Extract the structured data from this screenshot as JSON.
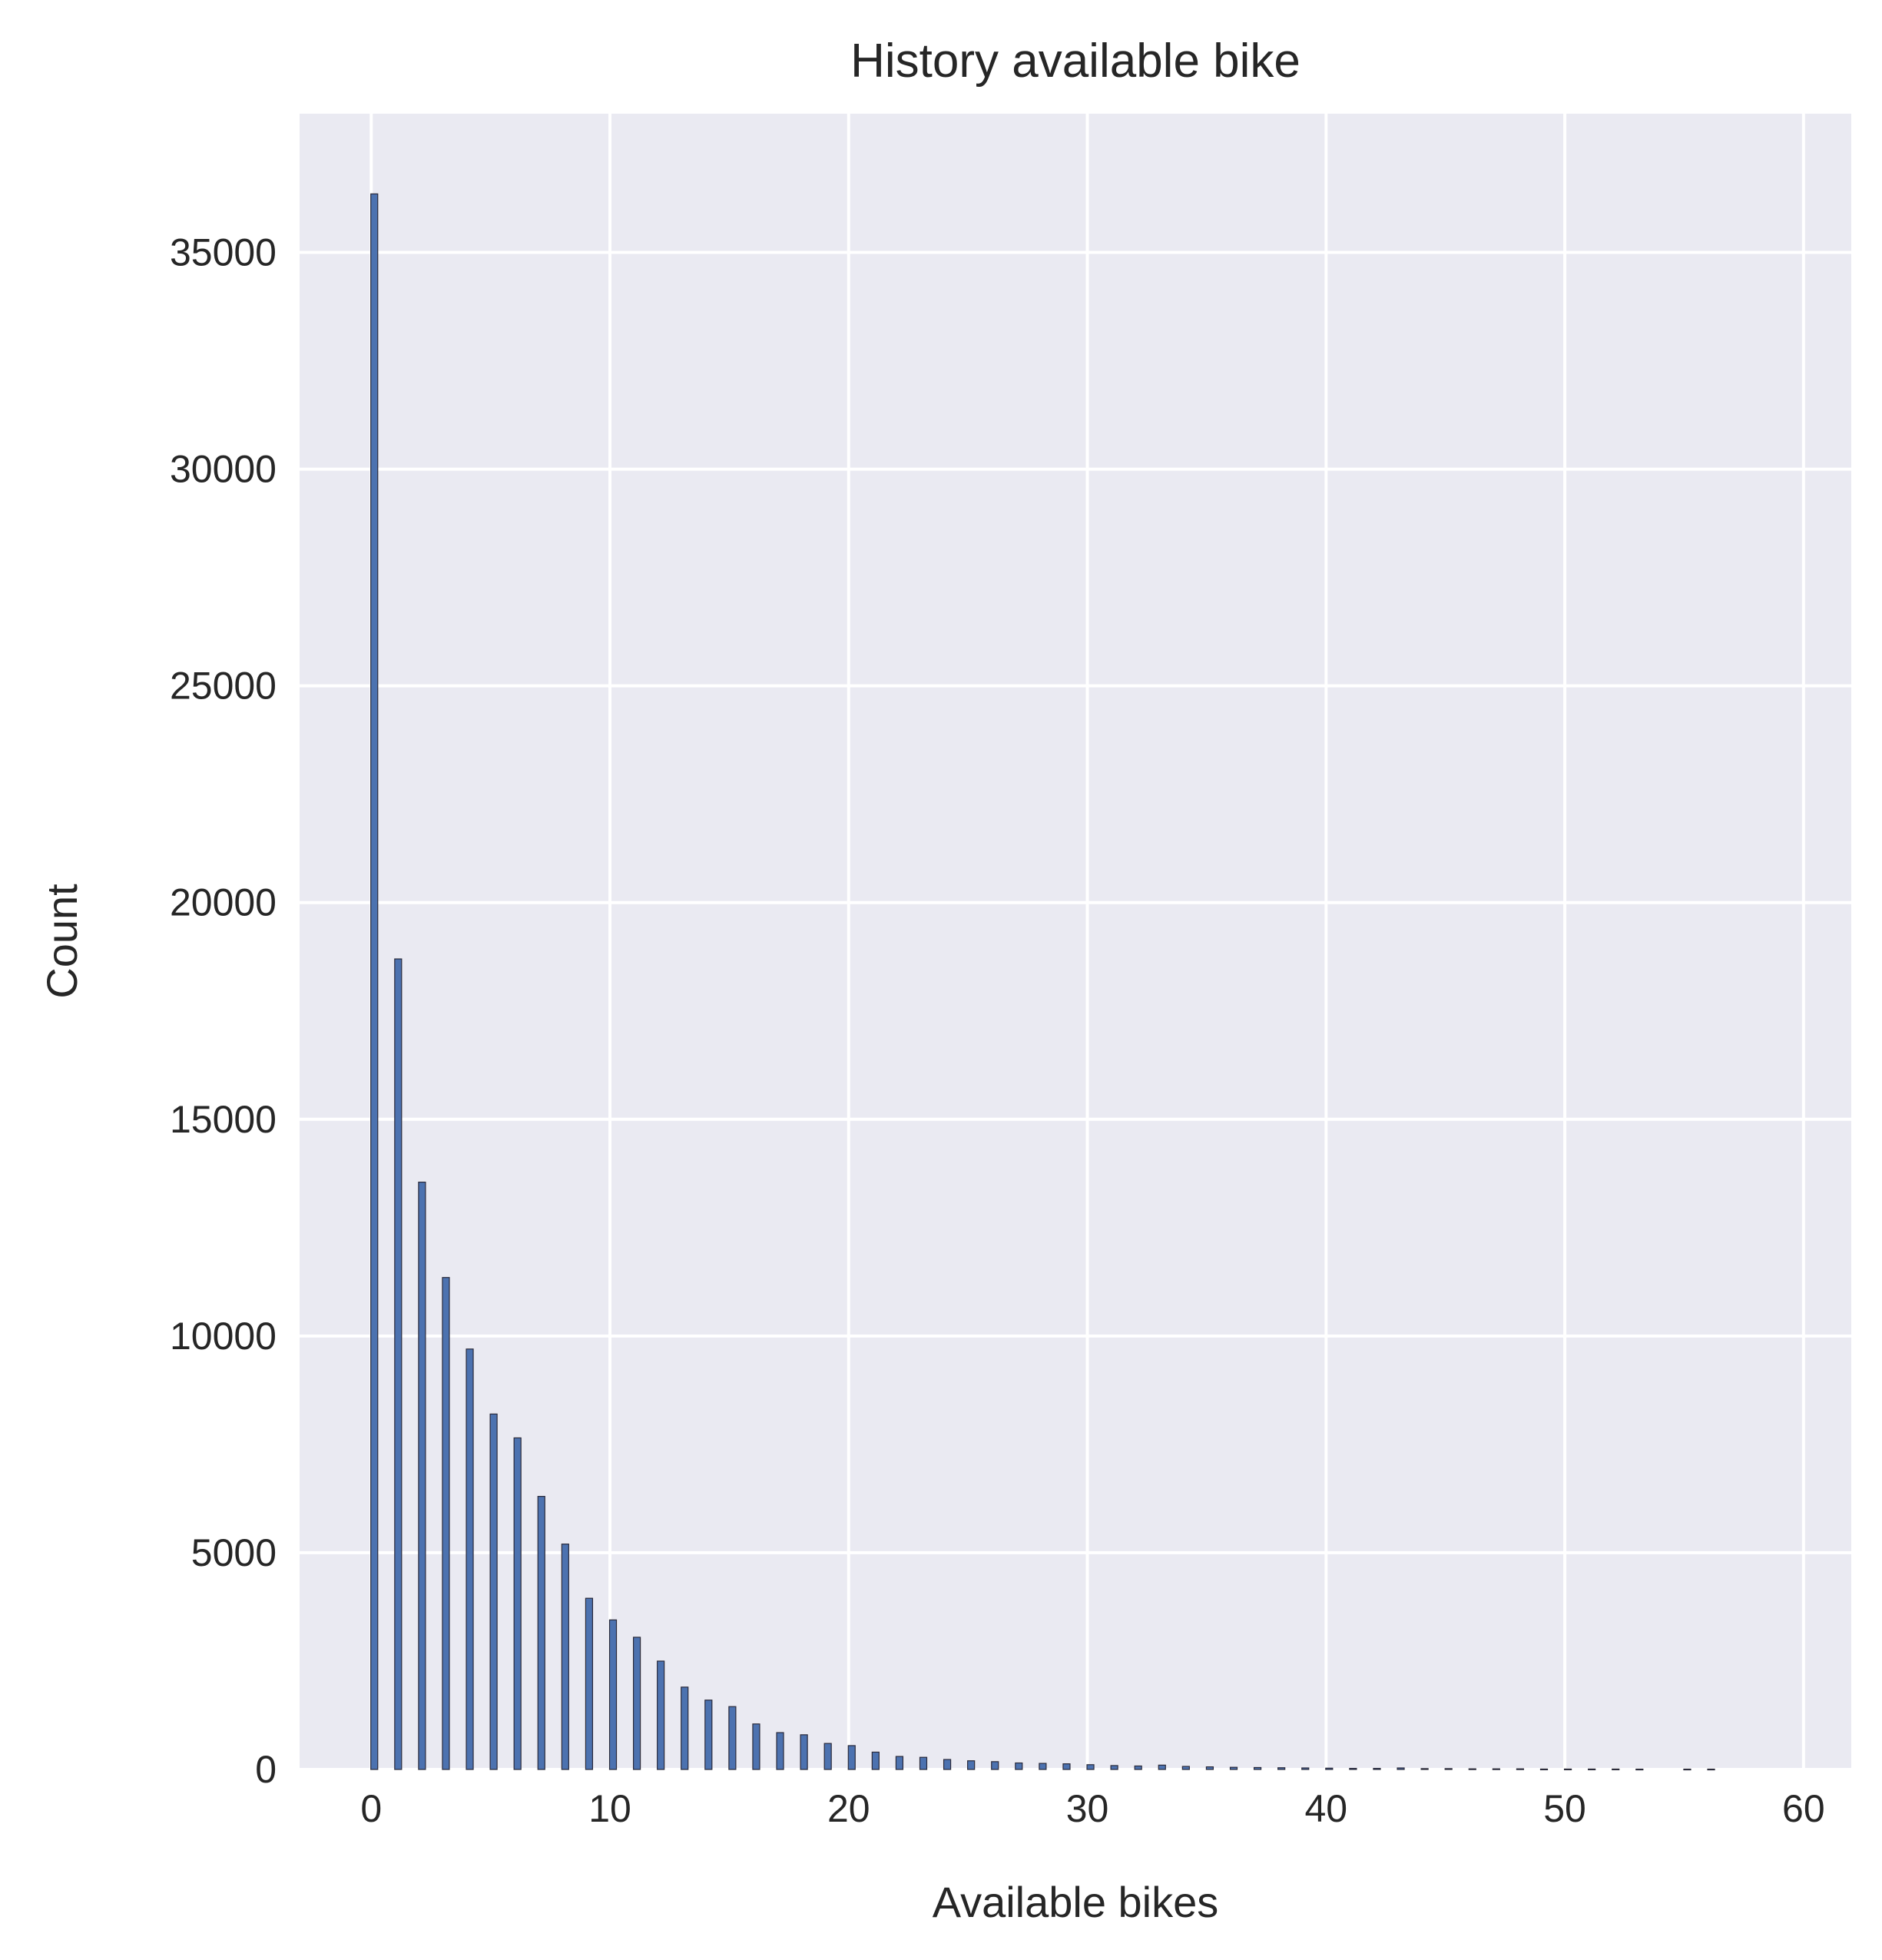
{
  "chart_data": {
    "type": "bar",
    "title": "History available bike",
    "xlabel": "Available bikes",
    "ylabel": "Count",
    "xlim": [
      -3,
      62
    ],
    "ylim": [
      0,
      38200
    ],
    "xticks": [
      0,
      10,
      20,
      30,
      40,
      50,
      60
    ],
    "yticks": [
      0,
      5000,
      10000,
      15000,
      20000,
      25000,
      30000,
      35000
    ],
    "grid": true,
    "colors": {
      "plot_bg": "#eaeaf2",
      "bar": "#4c72b0",
      "bar_edge": "#2a2a3a",
      "grid": "#ffffff",
      "text": "#262626"
    },
    "x": [
      0,
      1,
      2,
      3,
      4,
      5,
      6,
      7,
      8,
      9,
      10,
      11,
      12,
      13,
      14,
      15,
      16,
      17,
      18,
      19,
      20,
      21,
      22,
      23,
      24,
      25,
      26,
      27,
      28,
      29,
      30,
      31,
      32,
      33,
      34,
      35,
      36,
      37,
      38,
      39,
      40,
      41,
      42,
      43,
      44,
      45,
      46,
      47,
      48,
      49,
      50,
      51,
      52,
      53,
      54,
      55,
      56
    ],
    "values": [
      36350,
      18700,
      13550,
      11350,
      9700,
      8200,
      7650,
      6300,
      5200,
      3950,
      3450,
      3050,
      2500,
      1900,
      1600,
      1450,
      1050,
      850,
      800,
      600,
      550,
      400,
      300,
      280,
      230,
      200,
      180,
      150,
      140,
      130,
      110,
      90,
      80,
      100,
      70,
      60,
      50,
      45,
      40,
      35,
      30,
      25,
      25,
      35,
      20,
      20,
      15,
      15,
      15,
      10,
      10,
      10,
      10,
      8,
      0,
      8,
      8
    ]
  }
}
